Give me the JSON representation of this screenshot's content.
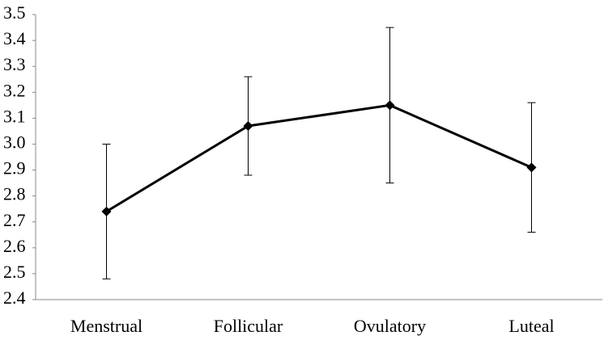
{
  "chart_data": {
    "type": "line",
    "categories": [
      "Menstrual",
      "Follicular",
      "Ovulatory",
      "Luteal"
    ],
    "series": [
      {
        "color": "#000000",
        "values": [
          2.74,
          3.07,
          3.15,
          2.91
        ],
        "errors": [
          0.26,
          0.19,
          0.3,
          0.25
        ]
      }
    ],
    "ylim": [
      2.4,
      3.5
    ],
    "yticks": [
      2.4,
      2.5,
      2.6,
      2.7,
      2.8,
      2.9,
      {
        "value": 3,
        "label": "3.0"
      },
      3.1,
      3.2,
      3.3,
      3.4,
      3.5
    ],
    "grid": false
  }
}
